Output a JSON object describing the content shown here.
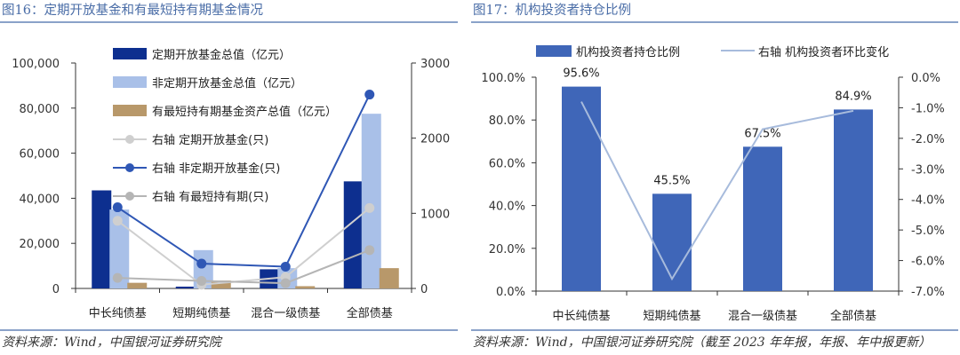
{
  "left": {
    "figure_title": "图16：定期开放基金和有最短持有期基金情况",
    "source": "资料来源：Wind，中国银河证券研究院"
  },
  "right": {
    "figure_title": "图17：机构投资者持仓比例",
    "source": "资料来源：Wind，中国银河证券研究院（截至 2023 年年报，年报、年中报更新）"
  },
  "colors": {
    "dark_blue": "#0d2f8f",
    "light_blue": "#a9c0e8",
    "tan": "#b8986a",
    "mid_blue": "#2f57b5",
    "light_gray": "#cfcfcf",
    "mid_gray": "#b5b5b5",
    "bar_blue": "#3f66b8",
    "line_light": "#a7bbdc"
  },
  "chart_data": [
    {
      "type": "bar",
      "categories": [
        "中长纯债基",
        "短期纯债基",
        "混合一级债基",
        "全部债基"
      ],
      "series": [
        {
          "name": "定期开放基金总值（亿元）",
          "axis": "left",
          "kind": "bar",
          "color": "dark_blue",
          "values": [
            43500,
            800,
            8500,
            47500
          ]
        },
        {
          "name": "非定期开放基金总值（亿元）",
          "axis": "left",
          "kind": "bar",
          "color": "light_blue",
          "values": [
            35000,
            17000,
            9000,
            77500
          ]
        },
        {
          "name": "有最短持有期基金资产总值（亿元）",
          "axis": "left",
          "kind": "bar",
          "color": "tan",
          "values": [
            2500,
            3500,
            1000,
            9000
          ]
        },
        {
          "name": "右轴 定期开放基金(只)",
          "axis": "right",
          "kind": "line",
          "color": "light_gray",
          "values": [
            900,
            50,
            150,
            1070
          ]
        },
        {
          "name": "右轴 非定期开放基金(只)",
          "axis": "right",
          "kind": "line",
          "color": "mid_blue",
          "values": [
            1080,
            330,
            290,
            2580
          ]
        },
        {
          "name": "右轴 有最短持有期(只)",
          "axis": "right",
          "kind": "line",
          "color": "mid_gray",
          "values": [
            140,
            100,
            70,
            510
          ]
        }
      ],
      "y_left": {
        "min": 0,
        "max": 100000,
        "ticks": [
          "0",
          "20,000",
          "40,000",
          "60,000",
          "80,000",
          "100,000"
        ]
      },
      "y_right": {
        "min": 0,
        "max": 3000,
        "ticks": [
          "0",
          "1000",
          "2000",
          "3000"
        ]
      },
      "legend_position": "top-left inside"
    },
    {
      "type": "bar",
      "categories": [
        "中长纯债基",
        "短期纯债基",
        "混合一级债基",
        "全部债基"
      ],
      "series": [
        {
          "name": "机构投资者持仓比例",
          "axis": "left",
          "kind": "bar",
          "color": "bar_blue",
          "values": [
            95.6,
            45.5,
            67.5,
            84.9
          ],
          "labels": [
            "95.6%",
            "45.5%",
            "67.5%",
            "84.9%"
          ]
        },
        {
          "name": "右轴 机构投资者环比变化",
          "axis": "right",
          "kind": "line",
          "color": "line_light",
          "values": [
            -0.8,
            -6.6,
            -1.7,
            -1.1
          ]
        }
      ],
      "y_left": {
        "min": 0,
        "max": 100,
        "ticks": [
          "0.0%",
          "20.0%",
          "40.0%",
          "60.0%",
          "80.0%",
          "100.0%"
        ]
      },
      "y_right": {
        "min": -7,
        "max": 0,
        "ticks": [
          "-7.0%",
          "-6.0%",
          "-5.0%",
          "-4.0%",
          "-3.0%",
          "-2.0%",
          "-1.0%",
          "0.0%"
        ]
      },
      "legend_position": "top"
    }
  ]
}
